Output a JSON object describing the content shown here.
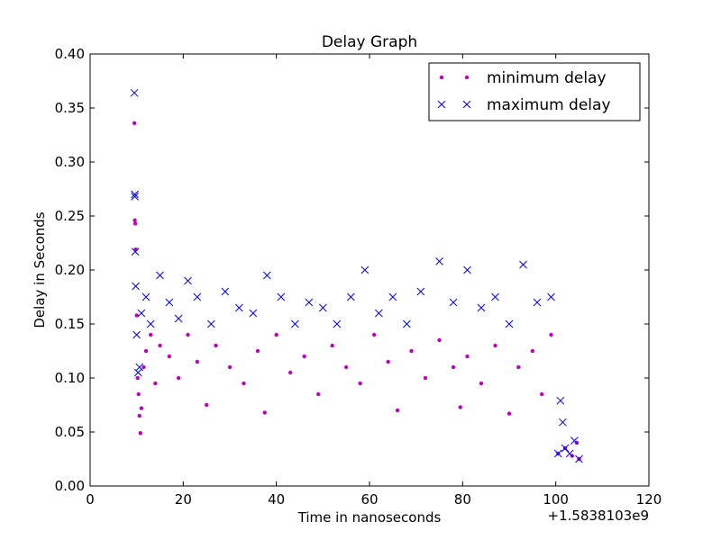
{
  "chart_data": {
    "type": "scatter",
    "title": "Delay Graph",
    "xlabel": "Time in nanoseconds",
    "ylabel": "Delay in Seconds",
    "x_offset_label": "+1.5838103e9",
    "xlim": [
      0,
      120
    ],
    "ylim": [
      0.0,
      0.4
    ],
    "x_ticks": [
      0,
      20,
      40,
      60,
      80,
      100,
      120
    ],
    "x_tick_labels": [
      "0",
      "20",
      "40",
      "60",
      "80",
      "100",
      "120"
    ],
    "y_ticks": [
      0.0,
      0.05,
      0.1,
      0.15,
      0.2,
      0.25,
      0.3,
      0.35,
      0.4
    ],
    "y_tick_labels": [
      "0.00",
      "0.05",
      "0.10",
      "0.15",
      "0.20",
      "0.25",
      "0.30",
      "0.35",
      "0.40"
    ],
    "grid": false,
    "legend_position": "top-right",
    "series": [
      {
        "name": "minimum delay",
        "marker": "dot",
        "color": "#bf00bf",
        "x": [
          9.5,
          9.6,
          9.7,
          9.8,
          10.0,
          10.2,
          10.4,
          10.6,
          10.8,
          11.0,
          11.5,
          12.0,
          13.0,
          14.0,
          15.0,
          17.0,
          19.0,
          21.0,
          23.0,
          25.0,
          27.0,
          30.0,
          33.0,
          36.0,
          37.5,
          40.0,
          43.0,
          46.0,
          49.0,
          52.0,
          55.0,
          58.0,
          61.0,
          64.0,
          66.0,
          69.0,
          72.0,
          75.0,
          78.0,
          79.5,
          81.0,
          84.0,
          87.0,
          90.0,
          92.0,
          95.0,
          97.0,
          99.0,
          100.5,
          102.0,
          103.5,
          104.5,
          105.0
        ],
        "y": [
          0.336,
          0.246,
          0.243,
          0.219,
          0.158,
          0.1,
          0.085,
          0.065,
          0.049,
          0.072,
          0.11,
          0.125,
          0.14,
          0.095,
          0.13,
          0.12,
          0.1,
          0.14,
          0.115,
          0.075,
          0.13,
          0.11,
          0.095,
          0.125,
          0.068,
          0.14,
          0.105,
          0.12,
          0.085,
          0.13,
          0.11,
          0.095,
          0.14,
          0.115,
          0.07,
          0.125,
          0.1,
          0.135,
          0.11,
          0.073,
          0.12,
          0.095,
          0.13,
          0.067,
          0.11,
          0.125,
          0.085,
          0.14,
          0.03,
          0.035,
          0.028,
          0.04,
          0.025
        ]
      },
      {
        "name": "maximum delay",
        "marker": "x",
        "color": "#0000ff",
        "x": [
          9.5,
          9.6,
          9.6,
          9.7,
          9.8,
          10.0,
          10.3,
          10.6,
          11.0,
          12.0,
          13.0,
          15.0,
          17.0,
          19.0,
          21.0,
          23.0,
          26.0,
          29.0,
          32.0,
          35.0,
          38.0,
          41.0,
          44.0,
          47.0,
          50.0,
          53.0,
          56.0,
          59.0,
          62.0,
          65.0,
          68.0,
          71.0,
          75.0,
          78.0,
          81.0,
          84.0,
          87.0,
          90.0,
          93.0,
          96.0,
          99.0,
          100.5,
          101.0,
          101.5,
          102.0,
          103.0,
          104.0,
          105.0
        ],
        "y": [
          0.364,
          0.27,
          0.268,
          0.217,
          0.185,
          0.14,
          0.105,
          0.11,
          0.16,
          0.175,
          0.15,
          0.195,
          0.17,
          0.155,
          0.19,
          0.175,
          0.15,
          0.18,
          0.165,
          0.16,
          0.195,
          0.175,
          0.15,
          0.17,
          0.165,
          0.15,
          0.175,
          0.2,
          0.16,
          0.175,
          0.15,
          0.18,
          0.208,
          0.17,
          0.2,
          0.165,
          0.175,
          0.15,
          0.205,
          0.17,
          0.175,
          0.03,
          0.079,
          0.059,
          0.035,
          0.03,
          0.042,
          0.025
        ]
      }
    ]
  }
}
